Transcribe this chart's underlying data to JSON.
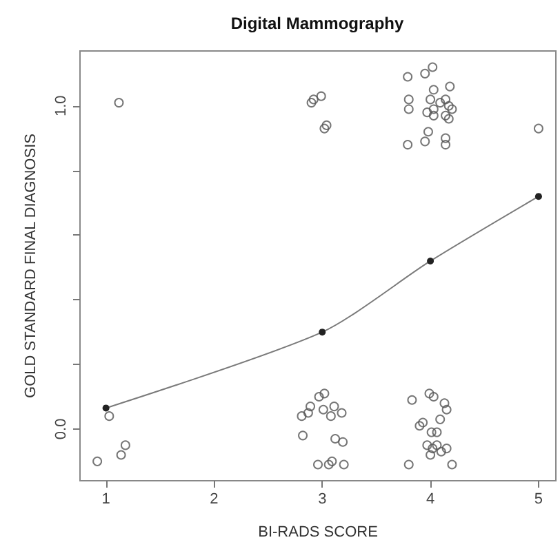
{
  "chart_data": {
    "type": "scatter",
    "title": "Digital Mammography",
    "xlabel": "BI-RADS SCORE",
    "ylabel": "GOLD STANDARD FINAL DIAGNOSIS",
    "xlim": [
      0.76,
      5.16
    ],
    "xticks": [
      1,
      2,
      3,
      4,
      5
    ],
    "ylim": [
      -0.16,
      1.17
    ],
    "yticks": [
      {
        "value": 0,
        "label": "0.0"
      },
      {
        "value": 0.2,
        "label": null
      },
      {
        "value": 0.4,
        "label": null
      },
      {
        "value": 0.6,
        "label": null
      },
      {
        "value": 0.8,
        "label": null
      },
      {
        "value": 1,
        "label": "1.0"
      }
    ],
    "grid": false,
    "marker": "circle",
    "series": [
      {
        "color": "#555555",
        "x": [
          1.12,
          1.03,
          1.18,
          1.14,
          0.92,
          2.9,
          2.92,
          2.99,
          3.02,
          3.04,
          3.79,
          3.95,
          4.02,
          4.03,
          4.18,
          3.8,
          3.8,
          4.0,
          4.09,
          4.14,
          3.97,
          4.03,
          4.03,
          4.14,
          4.17,
          4.2,
          4.17,
          3.98,
          3.95,
          3.79,
          4.14,
          4.14,
          5.0,
          2.97,
          3.02,
          2.89,
          2.87,
          2.81,
          3.01,
          3.11,
          3.18,
          3.08,
          2.82,
          3.12,
          3.19,
          2.96,
          3.06,
          3.09,
          3.2,
          3.99,
          4.03,
          3.83,
          4.13,
          4.15,
          3.93,
          3.9,
          4.09,
          4.01,
          4.06,
          3.97,
          4.02,
          4.06,
          4.1,
          4.15,
          4.0,
          3.8,
          4.2
        ],
        "values": [
          1.01,
          0.04,
          -0.05,
          -0.08,
          -0.1,
          1.01,
          1.02,
          1.03,
          0.93,
          0.94,
          1.09,
          1.1,
          1.12,
          1.05,
          1.06,
          1.02,
          0.99,
          1.02,
          1.01,
          1.02,
          0.98,
          0.99,
          0.97,
          0.97,
          1.0,
          0.99,
          0.96,
          0.92,
          0.89,
          0.88,
          0.9,
          0.88,
          0.93,
          0.1,
          0.11,
          0.07,
          0.05,
          0.04,
          0.06,
          0.07,
          0.05,
          0.04,
          -0.02,
          -0.03,
          -0.04,
          -0.11,
          -0.11,
          -0.1,
          -0.11,
          0.11,
          0.1,
          0.09,
          0.08,
          0.06,
          0.02,
          0.01,
          0.03,
          -0.01,
          -0.01,
          -0.05,
          -0.06,
          -0.05,
          -0.07,
          -0.06,
          -0.08,
          -0.11,
          -0.11
        ]
      },
      {
        "type": "line",
        "color": "#222222",
        "x": [
          1,
          3,
          4,
          5
        ],
        "values": [
          0.065,
          0.3,
          0.52,
          0.72
        ]
      }
    ]
  }
}
